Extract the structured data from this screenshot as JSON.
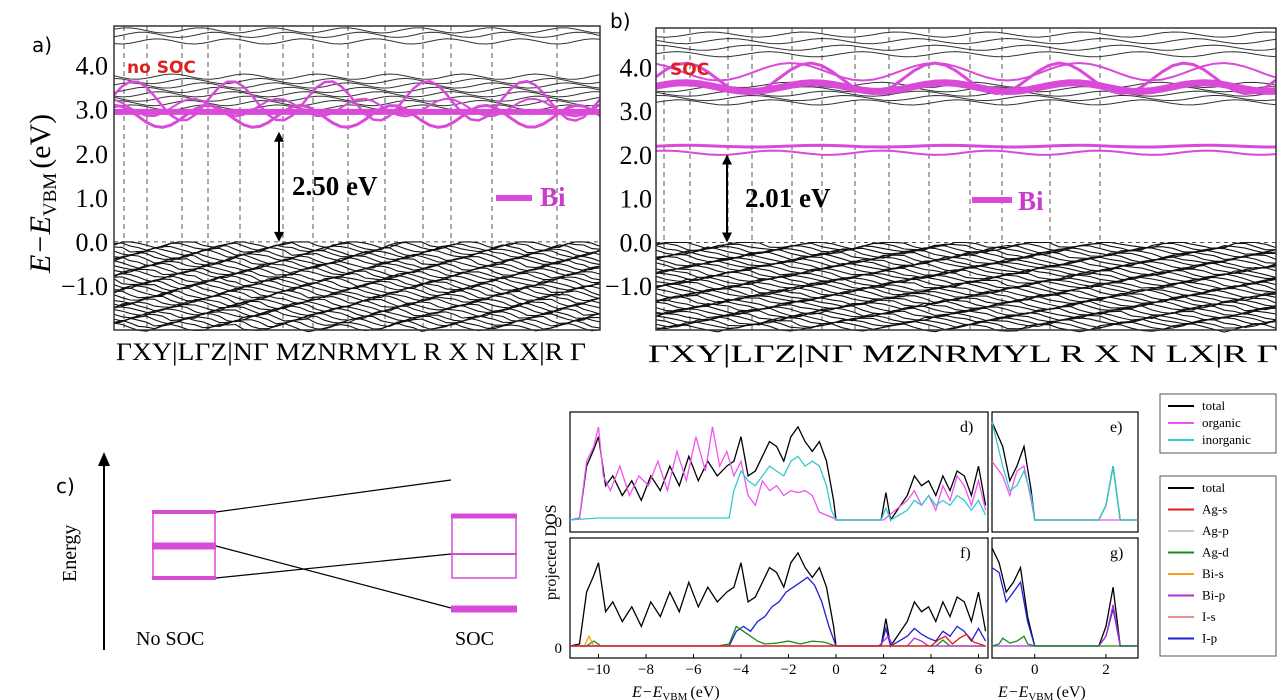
{
  "panel_a": {
    "label": "a)",
    "soc_label": "no SOC",
    "gap_label": "2.50 eV",
    "legend_label": "Bi",
    "ylabel_main": "E",
    "ylabel_minus": "−",
    "ylabel_E2": "E",
    "ylabel_sub": "VBM",
    "ylabel_unit": "(eV)"
  },
  "panel_b": {
    "label": "b)",
    "soc_label": "SOC",
    "gap_label": "2.01 eV",
    "legend_label": "Bi"
  },
  "panel_c": {
    "label": "c)",
    "yaxis_label": "Energy",
    "left_label": "No SOC",
    "right_label": "SOC"
  },
  "dos": {
    "ylabel": "projected DOS",
    "xlabel_E": "E",
    "xlabel_minus": "−",
    "xlabel_sub": "VBM",
    "xlabel_unit": "(eV)",
    "zero_label": "0",
    "panel_labels": [
      "d)",
      "e)",
      "f)",
      "g)"
    ]
  },
  "colors": {
    "bi": "#d94ad9",
    "band_black": "#111111",
    "organic": "#ee55ee",
    "inorganic": "#33cccc",
    "total": "#000000",
    "soc_text": "#e0201d"
  },
  "chart_data": [
    {
      "type": "line",
      "title": "",
      "panel": "a",
      "ylabel": "E − E_VBM (eV)",
      "ylim": [
        -2.0,
        4.9
      ],
      "yticks": [
        "4.0",
        "3.0",
        "2.0",
        "1.0",
        "0.0",
        "−1.0"
      ],
      "ytick_values": [
        4.0,
        3.0,
        2.0,
        1.0,
        0.0,
        -1.0
      ],
      "kpoints": [
        "Γ",
        "X",
        "Y",
        "|",
        "L",
        "Γ",
        "Z",
        "|",
        "N",
        "Γ",
        "M",
        "Z",
        "N",
        "R",
        "M",
        "Y",
        "L",
        "R",
        "X",
        "N",
        "L",
        "X",
        "|",
        "R",
        "Γ"
      ],
      "kpath_label": "ΓXY|LΓZ|NΓ MZNRMYL R  X N  LX|R Γ",
      "band_gap_eV": 2.5,
      "legend": [
        "Bi"
      ],
      "bi_bands_eV_range": [
        2.5,
        3.7
      ],
      "conduction_bands_eV_range": [
        3.0,
        4.8
      ],
      "valence_bands_eV_range": [
        -2.0,
        0.0
      ]
    },
    {
      "type": "line",
      "title": "",
      "panel": "b",
      "ylabel": "E − E_VBM (eV)",
      "ylim": [
        -2.0,
        4.9
      ],
      "yticks": [
        "4.0",
        "3.0",
        "2.0",
        "1.0",
        "0.0",
        "−1.0"
      ],
      "ytick_values": [
        4.0,
        3.0,
        2.0,
        1.0,
        0.0,
        -1.0
      ],
      "kpath_label": "ΓXY|LΓZ|NΓ MZNRMYL R  X N  LX|R Γ",
      "band_gap_eV": 2.01,
      "legend": [
        "Bi"
      ],
      "bi_bands_eV": [
        2.1,
        2.2,
        3.4,
        3.8,
        4.1
      ],
      "valence_bands_eV_range": [
        -2.0,
        0.0
      ]
    },
    {
      "type": "line",
      "title": "",
      "panel": "d",
      "xlabel": "E − E_VBM (eV)",
      "ylabel": "projected DOS",
      "xlim": [
        -11.2,
        6.4
      ],
      "xticks": [
        "−10",
        "−8",
        "−6",
        "−4",
        "−2",
        "0",
        "2",
        "4",
        "6"
      ],
      "xtick_values": [
        -10,
        -8,
        -6,
        -4,
        -2,
        0,
        2,
        4,
        6
      ],
      "series": [
        {
          "name": "total",
          "color": "#000000",
          "x": [
            -11.2,
            -10.8,
            -10.5,
            -10.2,
            -10.0,
            -9.7,
            -9.4,
            -9.0,
            -8.6,
            -8.2,
            -7.8,
            -7.4,
            -7.0,
            -6.6,
            -6.2,
            -5.8,
            -5.4,
            -5.0,
            -4.6,
            -4.3,
            -4.0,
            -3.7,
            -3.4,
            -3.1,
            -2.8,
            -2.5,
            -2.2,
            -1.9,
            -1.6,
            -1.3,
            -1.0,
            -0.7,
            -0.4,
            -0.1,
            0.0,
            1.0,
            1.9,
            2.1,
            2.3,
            3.0,
            3.3,
            3.6,
            3.9,
            4.2,
            4.5,
            4.8,
            5.1,
            5.4,
            5.7,
            6.0,
            6.3
          ],
          "y": [
            0,
            0.02,
            0.55,
            0.72,
            0.85,
            0.35,
            0.45,
            0.25,
            0.4,
            0.2,
            0.45,
            0.3,
            0.55,
            0.35,
            0.65,
            0.4,
            0.6,
            0.45,
            0.55,
            0.6,
            0.85,
            0.45,
            0.5,
            0.65,
            0.8,
            0.75,
            0.6,
            0.85,
            0.95,
            0.8,
            0.7,
            0.8,
            0.6,
            0.2,
            0.0,
            0.0,
            0.0,
            0.28,
            0.0,
            0.25,
            0.45,
            0.35,
            0.4,
            0.25,
            0.45,
            0.3,
            0.5,
            0.45,
            0.25,
            0.55,
            0.15
          ]
        },
        {
          "name": "organic",
          "color": "#ee55ee",
          "x": [
            -11.2,
            -10.8,
            -10.5,
            -10.2,
            -10.0,
            -9.8,
            -9.5,
            -9.1,
            -8.7,
            -8.3,
            -7.9,
            -7.5,
            -7.1,
            -6.7,
            -6.3,
            -5.9,
            -5.5,
            -5.2,
            -4.9,
            -4.6,
            -4.3,
            -4.0,
            -3.7,
            -3.4,
            -3.1,
            -2.8,
            -2.5,
            -2.2,
            -1.9,
            -1.6,
            -1.3,
            -1.0,
            -0.7,
            -0.4,
            -0.1,
            0.0,
            1.0,
            2.0,
            3.0,
            3.3,
            3.6,
            3.9,
            4.2,
            4.5,
            4.8,
            5.1,
            5.4,
            5.7,
            6.0,
            6.3
          ],
          "y": [
            0,
            0.02,
            0.6,
            0.75,
            0.95,
            0.45,
            0.3,
            0.55,
            0.25,
            0.45,
            0.35,
            0.6,
            0.3,
            0.7,
            0.4,
            0.85,
            0.5,
            0.95,
            0.55,
            0.7,
            0.45,
            0.6,
            0.25,
            0.15,
            0.4,
            0.3,
            0.35,
            0.25,
            0.3,
            0.28,
            0.3,
            0.25,
            0.08,
            0.05,
            0.02,
            0.0,
            0.0,
            0.0,
            0.2,
            0.3,
            0.15,
            0.25,
            0.1,
            0.35,
            0.2,
            0.45,
            0.35,
            0.15,
            0.4,
            0.1
          ]
        },
        {
          "name": "inorganic",
          "color": "#33cccc",
          "x": [
            -11.2,
            -10.0,
            -8.0,
            -6.0,
            -4.5,
            -4.3,
            -4.0,
            -3.7,
            -3.4,
            -3.1,
            -2.8,
            -2.5,
            -2.2,
            -1.9,
            -1.6,
            -1.3,
            -1.0,
            -0.7,
            -0.4,
            -0.2,
            0.0,
            1.9,
            2.1,
            2.3,
            3.0,
            3.3,
            3.6,
            3.9,
            4.2,
            4.5,
            4.8,
            5.1,
            5.4,
            5.7,
            6.0,
            6.3
          ],
          "y": [
            0,
            0.02,
            0.02,
            0.02,
            0.02,
            0.3,
            0.5,
            0.4,
            0.35,
            0.45,
            0.55,
            0.5,
            0.45,
            0.6,
            0.65,
            0.55,
            0.6,
            0.55,
            0.35,
            0.1,
            0.0,
            0.0,
            0.12,
            0.0,
            0.1,
            0.2,
            0.15,
            0.25,
            0.15,
            0.2,
            0.15,
            0.25,
            0.2,
            0.1,
            0.2,
            0.05
          ]
        }
      ]
    },
    {
      "type": "line",
      "title": "",
      "panel": "e",
      "xlabel": "E − E_VBM (eV)",
      "xlim": [
        -1.2,
        2.9
      ],
      "xticks": [
        "0",
        "2"
      ],
      "xtick_values": [
        0,
        2
      ],
      "series": [
        {
          "name": "total",
          "x": [
            -1.2,
            -0.9,
            -0.7,
            -0.5,
            -0.3,
            -0.1,
            0.0,
            1.8,
            2.0,
            2.2,
            2.4,
            2.9
          ],
          "y": [
            1.0,
            0.75,
            0.4,
            0.55,
            0.75,
            0.3,
            0.0,
            0.0,
            0.15,
            0.55,
            0.0,
            0.0
          ]
        },
        {
          "name": "organic",
          "x": [
            -1.2,
            -0.9,
            -0.7,
            -0.5,
            -0.3,
            -0.1,
            0.0,
            2.9
          ],
          "y": [
            0.6,
            0.45,
            0.25,
            0.5,
            0.55,
            0.2,
            0.0,
            0.0
          ]
        },
        {
          "name": "inorganic",
          "x": [
            -1.2,
            -0.9,
            -0.7,
            -0.5,
            -0.3,
            -0.1,
            0.0,
            1.8,
            2.0,
            2.2,
            2.4,
            2.9
          ],
          "y": [
            1.0,
            0.55,
            0.3,
            0.35,
            0.5,
            0.25,
            0.0,
            0.0,
            0.15,
            0.55,
            0.0,
            0.0
          ]
        }
      ]
    },
    {
      "type": "line",
      "title": "",
      "panel": "f",
      "xlabel": "E − E_VBM (eV)",
      "xlim": [
        -11.2,
        6.4
      ],
      "xticks": [
        "−10",
        "−8",
        "−6",
        "−4",
        "−2",
        "0",
        "2",
        "4",
        "6"
      ],
      "xtick_values": [
        -10,
        -8,
        -6,
        -4,
        -2,
        0,
        2,
        4,
        6
      ],
      "series": [
        {
          "name": "total",
          "color": "#000000",
          "x": [
            -11.2,
            -10.8,
            -10.5,
            -10.2,
            -10.0,
            -9.7,
            -9.4,
            -9.0,
            -8.6,
            -8.2,
            -7.8,
            -7.4,
            -7.0,
            -6.6,
            -6.2,
            -5.8,
            -5.4,
            -5.0,
            -4.6,
            -4.3,
            -4.0,
            -3.7,
            -3.4,
            -3.1,
            -2.8,
            -2.5,
            -2.2,
            -1.9,
            -1.6,
            -1.3,
            -1.0,
            -0.7,
            -0.4,
            -0.1,
            0.0,
            1.9,
            2.1,
            2.3,
            3.0,
            3.3,
            3.6,
            3.9,
            4.2,
            4.5,
            4.8,
            5.1,
            5.4,
            5.7,
            6.0,
            6.3
          ],
          "y": [
            0,
            0.02,
            0.55,
            0.72,
            0.85,
            0.35,
            0.45,
            0.25,
            0.4,
            0.2,
            0.45,
            0.3,
            0.55,
            0.35,
            0.65,
            0.4,
            0.6,
            0.45,
            0.55,
            0.6,
            0.85,
            0.45,
            0.5,
            0.65,
            0.8,
            0.75,
            0.6,
            0.85,
            0.95,
            0.8,
            0.7,
            0.8,
            0.6,
            0.2,
            0.0,
            0.0,
            0.28,
            0.0,
            0.25,
            0.45,
            0.35,
            0.4,
            0.25,
            0.45,
            0.3,
            0.5,
            0.45,
            0.25,
            0.55,
            0.15
          ]
        },
        {
          "name": "I-p",
          "color": "#1f1fd6",
          "x": [
            -11.2,
            -4.5,
            -4.2,
            -3.9,
            -3.6,
            -3.3,
            -3.0,
            -2.7,
            -2.4,
            -2.1,
            -1.8,
            -1.5,
            -1.2,
            -0.9,
            -0.6,
            -0.3,
            0.0,
            1.9,
            2.1,
            2.3,
            3.0,
            3.3,
            3.6,
            3.9,
            4.2,
            4.5,
            4.8,
            5.1,
            5.4,
            5.7,
            6.0,
            6.3
          ],
          "y": [
            0,
            0.0,
            0.15,
            0.2,
            0.15,
            0.25,
            0.3,
            0.4,
            0.45,
            0.55,
            0.6,
            0.65,
            0.7,
            0.62,
            0.45,
            0.2,
            0.0,
            0.0,
            0.18,
            0.0,
            0.1,
            0.18,
            0.12,
            0.08,
            0.05,
            0.15,
            0.1,
            0.2,
            0.15,
            0.05,
            0.18,
            0.05
          ]
        },
        {
          "name": "Ag-d",
          "color": "#1a8a1a",
          "x": [
            -11.2,
            -10.5,
            -10.2,
            -9.9,
            -5.0,
            -4.5,
            -4.2,
            -3.9,
            -3.6,
            -3.3,
            -3.0,
            -2.5,
            -2.0,
            -1.5,
            -1.0,
            -0.5,
            0.0,
            4.2,
            4.5,
            4.8,
            6.3
          ],
          "y": [
            0,
            0.0,
            0.05,
            0.0,
            0.0,
            0.02,
            0.2,
            0.15,
            0.1,
            0.05,
            0.02,
            0.03,
            0.05,
            0.02,
            0.05,
            0.04,
            0.0,
            0.0,
            0.06,
            0.0,
            0.0
          ]
        },
        {
          "name": "Bi-s",
          "color": "#ff9a1a",
          "x": [
            -11.2,
            -10.6,
            -10.4,
            -10.2,
            -9.8,
            6.3
          ],
          "y": [
            0,
            0.0,
            0.1,
            0.0,
            0.0,
            0.0
          ]
        },
        {
          "name": "Bi-p",
          "color": "#b030d0",
          "x": [
            -11.2,
            1.8,
            2.0,
            2.2,
            2.4,
            3.0,
            3.3,
            3.6,
            3.9,
            6.3
          ],
          "y": [
            0,
            0.0,
            0.05,
            0.1,
            0.0,
            0.0,
            0.08,
            0.05,
            0.0,
            0.0
          ]
        },
        {
          "name": "Ag-s",
          "color": "#e01a1a",
          "x": [
            -11.2,
            4.0,
            4.3,
            4.6,
            4.9,
            5.2,
            5.5,
            5.8,
            6.3
          ],
          "y": [
            0,
            0.0,
            0.06,
            0.1,
            0.02,
            0.08,
            0.12,
            0.04,
            0.0
          ]
        }
      ]
    },
    {
      "type": "line",
      "title": "",
      "panel": "g",
      "xlabel": "E − E_VBM (eV)",
      "xlim": [
        -1.2,
        2.9
      ],
      "xticks": [
        "0",
        "2"
      ],
      "xtick_values": [
        0,
        2
      ],
      "series": [
        {
          "name": "total",
          "x": [
            -1.2,
            -1.0,
            -0.8,
            -0.6,
            -0.4,
            -0.2,
            0.0,
            1.8,
            2.0,
            2.2,
            2.4,
            2.9
          ],
          "y": [
            1.0,
            0.85,
            0.55,
            0.65,
            0.8,
            0.3,
            0.0,
            0.0,
            0.2,
            0.6,
            0.0,
            0.0
          ]
        },
        {
          "name": "I-p",
          "x": [
            -1.2,
            -1.0,
            -0.8,
            -0.6,
            -0.4,
            -0.2,
            0.0,
            1.8,
            2.0,
            2.2,
            2.4,
            2.9
          ],
          "y": [
            0.8,
            0.75,
            0.45,
            0.55,
            0.65,
            0.25,
            0.0,
            0.0,
            0.1,
            0.38,
            0.0,
            0.0
          ]
        },
        {
          "name": "Bi-p",
          "x": [
            -1.2,
            1.8,
            2.0,
            2.2,
            2.4,
            2.9
          ],
          "y": [
            0,
            0.0,
            0.1,
            0.42,
            0.0,
            0.0
          ]
        },
        {
          "name": "Ag-d",
          "x": [
            -1.2,
            -1.0,
            -0.9,
            -0.7,
            -0.5,
            -0.3,
            -0.2,
            0.0,
            2.9
          ],
          "y": [
            0,
            0.02,
            0.08,
            0.03,
            0.05,
            0.1,
            0.02,
            0.0,
            0.0
          ]
        }
      ]
    }
  ],
  "legend_top": [
    "total",
    "organic",
    "inorganic"
  ],
  "legend_bottom": [
    "total",
    "Ag-s",
    "Ag-p",
    "Ag-d",
    "Bi-s",
    "Bi-p",
    "I-s",
    "I-p"
  ],
  "legend_bottom_colors": [
    "#000000",
    "#e01a1a",
    "#c8c8c8",
    "#1a8a1a",
    "#ff9a1a",
    "#b030d0",
    "#e89090",
    "#1f1fd6"
  ],
  "legend_top_colors": [
    "#000000",
    "#ee55ee",
    "#33cccc"
  ]
}
